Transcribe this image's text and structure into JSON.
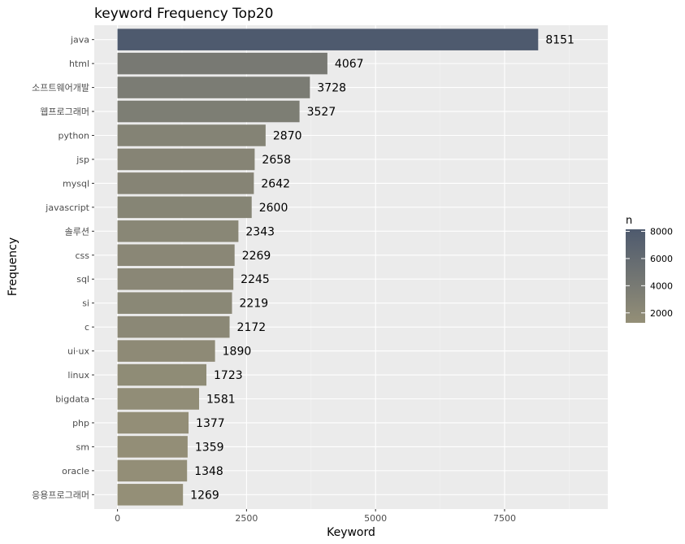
{
  "chart_data": {
    "type": "bar",
    "orientation": "horizontal",
    "title": "keyword Frequency Top20",
    "xlabel": "Keyword",
    "ylabel": "Frequency",
    "categories": [
      "java",
      "html",
      "소프트웨어개발",
      "웹프로그래머",
      "python",
      "jsp",
      "mysql",
      "javascript",
      "솔루션",
      "css",
      "sql",
      "si",
      "c",
      "ui·ux",
      "linux",
      "bigdata",
      "php",
      "sm",
      "oracle",
      "응용프로그래머"
    ],
    "values": [
      8151,
      4067,
      3728,
      3527,
      2870,
      2658,
      2642,
      2600,
      2343,
      2269,
      2245,
      2219,
      2172,
      1890,
      1723,
      1581,
      1377,
      1359,
      1348,
      1269
    ],
    "xlim": [
      -450,
      9500
    ],
    "xticks": [
      0,
      2500,
      5000,
      7500
    ],
    "xtick_labels": [
      "0",
      "2500",
      "5000",
      "7500"
    ],
    "grid": true,
    "legend": {
      "title": "n",
      "placement": "right",
      "min": 1269,
      "max": 8151,
      "ticks": [
        2000,
        4000,
        6000,
        8000
      ],
      "tick_labels": [
        "2000",
        "4000",
        "6000",
        "8000"
      ],
      "color_low": "#948f77",
      "color_high": "#4e5a6e"
    },
    "panel_background": "#ebebeb",
    "grid_color": "#ffffff"
  }
}
